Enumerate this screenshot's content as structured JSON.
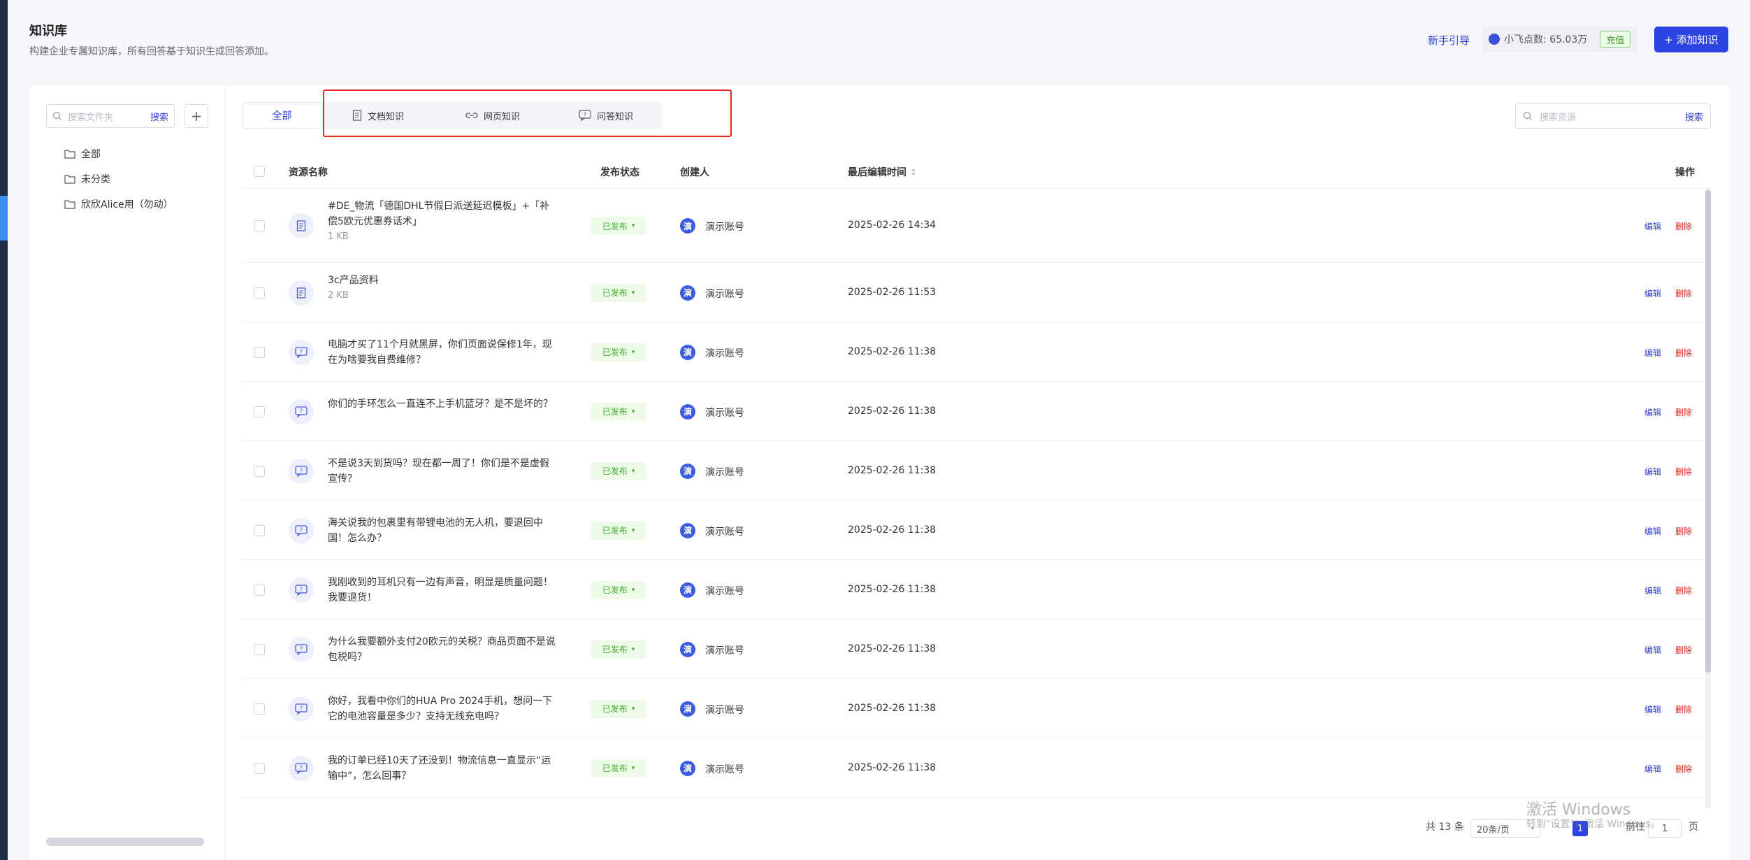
{
  "header": {
    "title": "知识库",
    "subtitle": "构建企业专属知识库，所有回答基于知识生成回答添加。",
    "guide_link": "新手引导",
    "points_label": "小飞点数: 65.03万",
    "recharge": "充值",
    "add_button": "+ 添加知识"
  },
  "sidebar": {
    "search_placeholder": "搜索文件夹",
    "search_button": "搜索",
    "add_icon": "plus-icon",
    "folders": [
      {
        "label": "全部",
        "icon": "folder-icon"
      },
      {
        "label": "未分类",
        "icon": "folder-icon"
      },
      {
        "label": "欣欣Alice用（勿动）",
        "icon": "folder-icon"
      }
    ]
  },
  "tabs": {
    "all": "全部",
    "items": [
      {
        "label": "文档知识",
        "icon": "document-icon"
      },
      {
        "label": "网页知识",
        "icon": "link-icon"
      },
      {
        "label": "问答知识",
        "icon": "qa-icon"
      }
    ]
  },
  "resource_search": {
    "placeholder": "搜索资源",
    "button": "搜索"
  },
  "table": {
    "columns": [
      "资源名称",
      "发布状态",
      "创建人",
      "最后编辑时间",
      "操作"
    ],
    "rows": [
      {
        "name": "#DE_物流「德国DHL节假日派送延迟模板」+「补偿5欧元优惠券话术」",
        "size": "1 KB",
        "type": "doc",
        "status": "已发布",
        "avatar": "演",
        "creator": "演示账号",
        "time": "2025-02-26 14:34",
        "edit": "编辑",
        "del": "删除"
      },
      {
        "name": "3c产品资料",
        "size": "2 KB",
        "type": "doc",
        "status": "已发布",
        "avatar": "演",
        "creator": "演示账号",
        "time": "2025-02-26 11:53",
        "edit": "编辑",
        "del": "删除"
      },
      {
        "name": "电脑才买了11个月就黑屏，你们页面说保修1年，现在为啥要我自费维修？",
        "size": "",
        "type": "qa",
        "status": "已发布",
        "avatar": "演",
        "creator": "演示账号",
        "time": "2025-02-26 11:38",
        "edit": "编辑",
        "del": "删除"
      },
      {
        "name": "你们的手环怎么一直连不上手机蓝牙？是不是坏的？",
        "size": "",
        "type": "qa",
        "status": "已发布",
        "avatar": "演",
        "creator": "演示账号",
        "time": "2025-02-26 11:38",
        "edit": "编辑",
        "del": "删除"
      },
      {
        "name": "不是说3天到货吗？现在都一周了！你们是不是虚假宣传？",
        "size": "",
        "type": "qa",
        "status": "已发布",
        "avatar": "演",
        "creator": "演示账号",
        "time": "2025-02-26 11:38",
        "edit": "编辑",
        "del": "删除"
      },
      {
        "name": "海关说我的包裹里有带锂电池的无人机，要退回中国！怎么办？",
        "size": "",
        "type": "qa",
        "status": "已发布",
        "avatar": "演",
        "creator": "演示账号",
        "time": "2025-02-26 11:38",
        "edit": "编辑",
        "del": "删除"
      },
      {
        "name": "我刚收到的耳机只有一边有声音，明显是质量问题！我要退货！",
        "size": "",
        "type": "qa",
        "status": "已发布",
        "avatar": "演",
        "creator": "演示账号",
        "time": "2025-02-26 11:38",
        "edit": "编辑",
        "del": "删除"
      },
      {
        "name": "为什么我要额外支付20欧元的关税？商品页面不是说包税吗？",
        "size": "",
        "type": "qa",
        "status": "已发布",
        "avatar": "演",
        "creator": "演示账号",
        "time": "2025-02-26 11:38",
        "edit": "编辑",
        "del": "删除"
      },
      {
        "name": "你好，我看中你们的HUA Pro 2024手机，想问一下它的电池容量是多少？支持无线充电吗？",
        "size": "",
        "type": "qa",
        "status": "已发布",
        "avatar": "演",
        "creator": "演示账号",
        "time": "2025-02-26 11:38",
        "edit": "编辑",
        "del": "删除"
      },
      {
        "name": "我的订单已经10天了还没到！物流信息一直显示“运输中”，怎么回事？",
        "size": "",
        "type": "qa",
        "status": "已发布",
        "avatar": "演",
        "creator": "演示账号",
        "time": "2025-02-26 11:38",
        "edit": "编辑",
        "del": "删除"
      }
    ]
  },
  "pagination": {
    "total": "共 13 条",
    "page_size": "20条/页",
    "current": "1",
    "goto_label": "前往",
    "goto_value": "1",
    "page_suffix": "页"
  },
  "watermark": {
    "line1": "激活 Windows",
    "line2": "转到\"设置\"以激活 Windows。"
  },
  "colors": {
    "primary": "#2e44e0",
    "success": "#3fae2b",
    "danger": "#e0261f",
    "highlight": "#e0261f"
  }
}
